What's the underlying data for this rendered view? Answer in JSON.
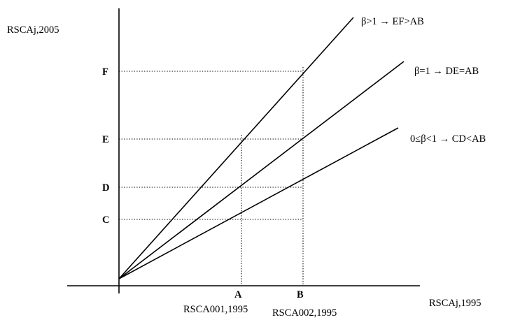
{
  "axes": {
    "y_label": "RSCAj,2005",
    "x_label": "RSCAj,1995"
  },
  "x_ticks": [
    {
      "label": "A",
      "caption": "RSCA001,1995"
    },
    {
      "label": "B",
      "caption": "RSCA002,1995"
    }
  ],
  "y_ticks": [
    {
      "label": "F"
    },
    {
      "label": "E"
    },
    {
      "label": "D"
    },
    {
      "label": "C"
    }
  ],
  "lines": [
    {
      "label": "β>1 → EF>AB"
    },
    {
      "label": "β=1 → DE=AB"
    },
    {
      "label": "0≤β<1 → CD<AB"
    }
  ]
}
